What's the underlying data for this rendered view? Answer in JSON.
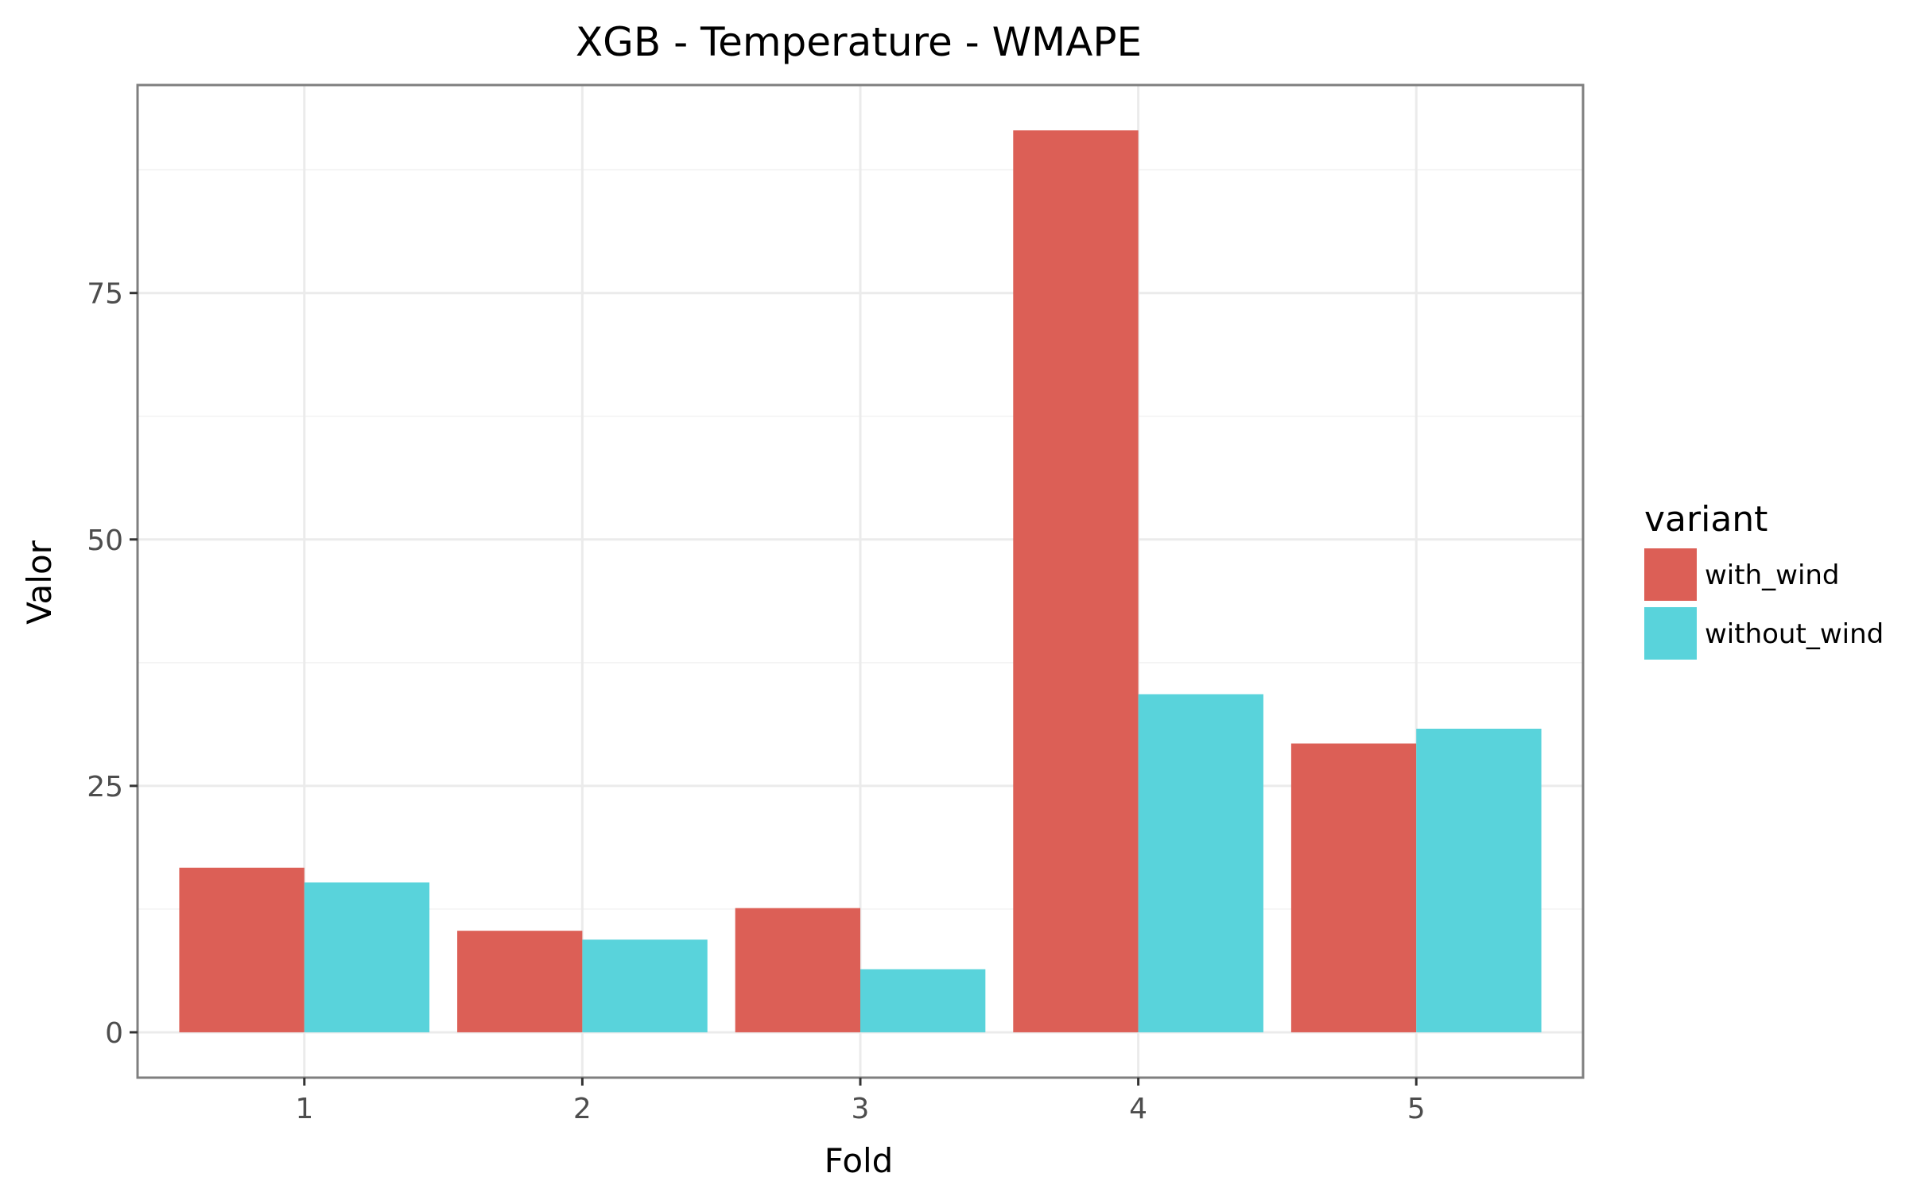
{
  "chart_data": {
    "type": "bar",
    "title": "XGB - Temperature - WMAPE",
    "xlabel": "Fold",
    "ylabel": "Valor",
    "categories": [
      "1",
      "2",
      "3",
      "4",
      "5"
    ],
    "series": [
      {
        "name": "with_wind",
        "color": "#dc5f56",
        "values": [
          16.7,
          10.3,
          12.6,
          91.5,
          29.3
        ]
      },
      {
        "name": "without_wind",
        "color": "#59d3db",
        "values": [
          15.2,
          9.4,
          6.4,
          34.3,
          30.8
        ]
      }
    ],
    "ylim": [
      -4.6,
      96.1
    ],
    "yticks": [
      0,
      25,
      50,
      75
    ],
    "legend": {
      "title": "variant",
      "position": "right"
    },
    "grid": true
  }
}
